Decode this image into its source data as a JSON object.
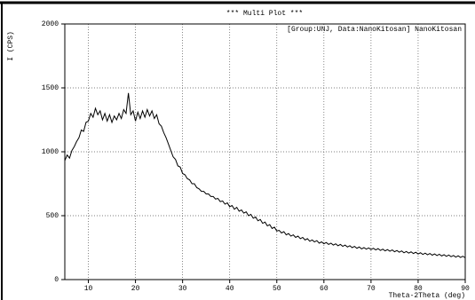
{
  "chart_data": {
    "type": "line",
    "title": "***   Multi Plot   ***",
    "legend_text": "[Group:UNJ, Data:NanoKitosan] NanoKitosan",
    "ylabel": "I (CPS)",
    "xlabel": "Theta-2Theta (deg)",
    "xlim": [
      5,
      90
    ],
    "ylim": [
      0,
      2000
    ],
    "xticks": [
      10,
      20,
      30,
      40,
      50,
      60,
      70,
      80,
      90
    ],
    "yticks": [
      0,
      500,
      1000,
      1500,
      2000
    ],
    "grid": true,
    "series": [
      {
        "color": "#000000",
        "x": [
          5,
          5.5,
          6,
          6.5,
          7,
          7.5,
          8,
          8.5,
          9,
          9.5,
          10,
          10.5,
          11,
          11.5,
          12,
          12.5,
          13,
          13.5,
          14,
          14.5,
          15,
          15.5,
          16,
          16.5,
          17,
          17.5,
          18,
          18.5,
          19,
          19.5,
          20,
          20.5,
          21,
          21.5,
          22,
          22.5,
          23,
          23.5,
          24,
          24.5,
          25,
          25.5,
          26,
          26.5,
          27,
          27.5,
          28,
          28.5,
          29,
          29.5,
          30,
          30.5,
          31,
          31.5,
          32,
          32.5,
          33,
          33.5,
          34,
          34.5,
          35,
          35.5,
          36,
          36.5,
          37,
          37.5,
          38,
          38.5,
          39,
          39.5,
          40,
          40.5,
          41,
          41.5,
          42,
          42.5,
          43,
          43.5,
          44,
          44.5,
          45,
          45.5,
          46,
          46.5,
          47,
          47.5,
          48,
          48.5,
          49,
          49.5,
          50,
          50.5,
          51,
          51.5,
          52,
          52.5,
          53,
          53.5,
          54,
          54.5,
          55,
          55.5,
          56,
          56.5,
          57,
          57.5,
          58,
          58.5,
          59,
          59.5,
          60,
          60.5,
          61,
          61.5,
          62,
          62.5,
          63,
          63.5,
          64,
          64.5,
          65,
          65.5,
          66,
          66.5,
          67,
          67.5,
          68,
          68.5,
          69,
          69.5,
          70,
          70.5,
          71,
          71.5,
          72,
          72.5,
          73,
          73.5,
          74,
          74.5,
          75,
          75.5,
          76,
          76.5,
          77,
          77.5,
          78,
          78.5,
          79,
          79.5,
          80,
          80.5,
          81,
          81.5,
          82,
          82.5,
          83,
          83.5,
          84,
          84.5,
          85,
          85.5,
          86,
          86.5,
          87,
          87.5,
          88,
          88.5,
          89,
          89.5,
          90
        ],
        "values": [
          930,
          975,
          950,
          1010,
          1040,
          1080,
          1110,
          1170,
          1160,
          1230,
          1240,
          1300,
          1270,
          1340,
          1290,
          1320,
          1250,
          1300,
          1240,
          1290,
          1230,
          1280,
          1250,
          1300,
          1260,
          1330,
          1300,
          1460,
          1290,
          1320,
          1240,
          1310,
          1260,
          1320,
          1270,
          1330,
          1280,
          1320,
          1260,
          1290,
          1220,
          1200,
          1150,
          1110,
          1060,
          1010,
          960,
          940,
          890,
          880,
          830,
          820,
          790,
          780,
          750,
          750,
          720,
          710,
          690,
          690,
          670,
          670,
          650,
          650,
          630,
          635,
          610,
          615,
          590,
          600,
          570,
          580,
          550,
          565,
          535,
          545,
          520,
          530,
          500,
          510,
          480,
          490,
          460,
          470,
          440,
          450,
          420,
          430,
          400,
          410,
          380,
          385,
          365,
          375,
          350,
          360,
          340,
          350,
          330,
          340,
          320,
          330,
          310,
          320,
          300,
          310,
          295,
          305,
          285,
          295,
          280,
          290,
          275,
          285,
          270,
          280,
          265,
          275,
          260,
          270,
          255,
          265,
          250,
          260,
          245,
          255,
          240,
          250,
          238,
          248,
          235,
          245,
          232,
          242,
          228,
          238,
          225,
          235,
          222,
          232,
          218,
          228,
          214,
          224,
          210,
          220,
          207,
          217,
          204,
          214,
          200,
          210,
          197,
          207,
          194,
          204,
          191,
          201,
          188,
          198,
          185,
          195,
          182,
          192,
          179,
          189,
          176,
          186,
          173,
          183,
          170
        ]
      }
    ]
  }
}
